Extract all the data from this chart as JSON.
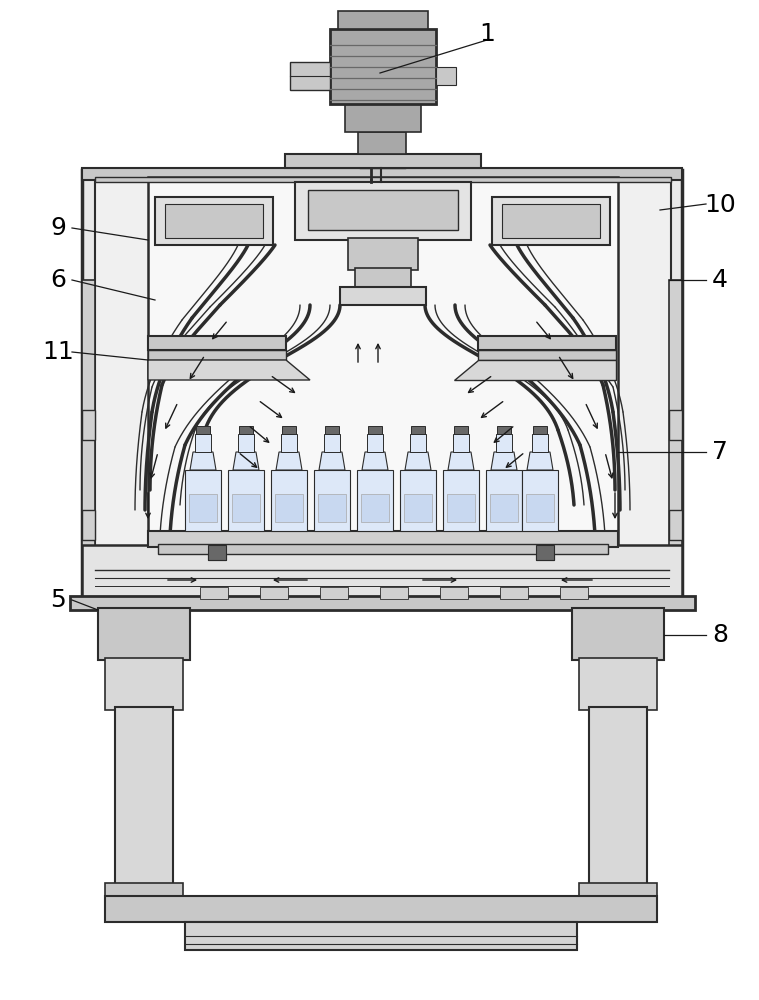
{
  "bg_color": "#ffffff",
  "lc": "#2c2c2c",
  "lg": "#c8c8c8",
  "mg": "#a8a8a8",
  "dg": "#686868",
  "figsize": [
    7.59,
    10.0
  ],
  "dpi": 100
}
